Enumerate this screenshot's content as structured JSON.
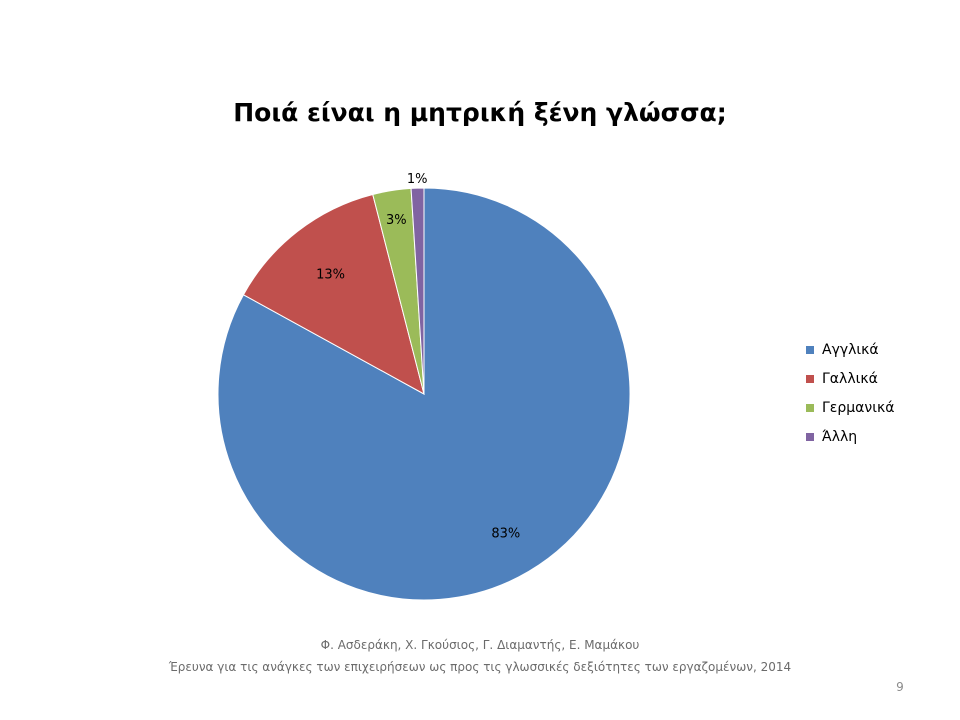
{
  "chart_data": {
    "type": "pie",
    "title": "Ποιά είναι η μητρική ξένη γλώσσα;",
    "categories": [
      "Αγγλικά",
      "Γαλλικά",
      "Γερμανικά",
      "Άλλη"
    ],
    "values": [
      83,
      13,
      3,
      1
    ],
    "labels": [
      "83%",
      "13%",
      "3%",
      "1%"
    ],
    "colors": [
      "#4F81BD",
      "#C0504D",
      "#9BBB59",
      "#8064A2"
    ],
    "legend_position": "right"
  },
  "footer": {
    "authors": "Φ. Ασδεράκη, Χ. Γκούσιος, Γ. Διαμαντής, Ε. Μαμάκου",
    "source": "Έρευνα για τις ανάγκες των επιχειρήσεων ως προς τις γλωσσικές δεξιότητες των εργαζομένων, 2014"
  },
  "page_number": "9"
}
